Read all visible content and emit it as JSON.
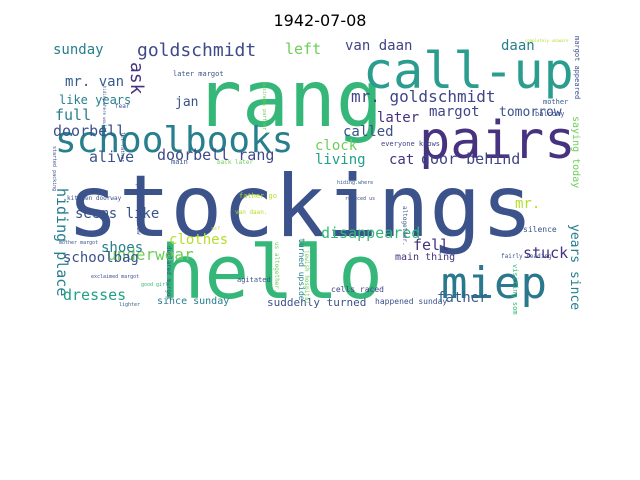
{
  "title": "1942-07-08",
  "colors": {
    "dark_purple": "#46327e",
    "deep_blue": "#365c8d",
    "blue": "#3b528b",
    "teal": "#277f8e",
    "teal_green": "#1fa187",
    "green": "#35b779",
    "light_green": "#6ece58",
    "lime": "#b5de2b",
    "yellow": "#d2e21b"
  },
  "words": [
    {
      "text": "stockings",
      "color": "#3b528b"
    },
    {
      "text": "rang",
      "color": "#35b779"
    },
    {
      "text": "hello",
      "color": "#35b779"
    },
    {
      "text": "call-up",
      "color": "#2a9d8f"
    },
    {
      "text": "pairs",
      "color": "#46327e"
    },
    {
      "text": "schoolbooks",
      "color": "#277f8e"
    },
    {
      "text": "miep",
      "color": "#2a788e"
    },
    {
      "text": "goldschmidt",
      "color": "#3e4a89"
    },
    {
      "text": "mr. goldschmidt",
      "color": "#414487"
    },
    {
      "text": "doorbell rang",
      "color": "#3e4a89"
    },
    {
      "text": "door behind",
      "color": "#414487"
    },
    {
      "text": "ask",
      "color": "#46327e"
    },
    {
      "text": "sunday",
      "color": "#277f8e"
    },
    {
      "text": "left",
      "color": "#6ece58"
    },
    {
      "text": "van daan",
      "color": "#414487"
    },
    {
      "text": "daan",
      "color": "#277f8e"
    },
    {
      "text": "mr. van",
      "color": "#365c8d"
    },
    {
      "text": "like years",
      "color": "#277f8e"
    },
    {
      "text": "doorbell",
      "color": "#3b528b"
    },
    {
      "text": "jan",
      "color": "#3b528b"
    },
    {
      "text": "margot",
      "color": "#414487"
    },
    {
      "text": "tomorrow",
      "color": "#3b528b"
    },
    {
      "text": "full",
      "color": "#277f8e"
    },
    {
      "text": "later",
      "color": "#46327e"
    },
    {
      "text": "called",
      "color": "#3b528b"
    },
    {
      "text": "clock",
      "color": "#6ece58"
    },
    {
      "text": "living",
      "color": "#1fa187"
    },
    {
      "text": "cat",
      "color": "#46327e"
    },
    {
      "text": "alive",
      "color": "#3b528b"
    },
    {
      "text": "hiding place",
      "color": "#277f8e"
    },
    {
      "text": "seems like",
      "color": "#3b528b"
    },
    {
      "text": "clothes",
      "color": "#b5de2b"
    },
    {
      "text": "disappeared",
      "color": "#35b779"
    },
    {
      "text": "mr.",
      "color": "#b5de2b"
    },
    {
      "text": "underwear",
      "color": "#6ece58"
    },
    {
      "text": "shoes",
      "color": "#277f8e"
    },
    {
      "text": "schoolbag",
      "color": "#3b528b"
    },
    {
      "text": "dresses",
      "color": "#1fa187"
    },
    {
      "text": "fell",
      "color": "#46327e"
    },
    {
      "text": "stuck",
      "color": "#46327e"
    },
    {
      "text": "father",
      "color": "#365c8d"
    },
    {
      "text": "years since",
      "color": "#277f8e"
    },
    {
      "text": "main thing",
      "color": "#46327e"
    },
    {
      "text": "suddenly turned",
      "color": "#3b528b"
    },
    {
      "text": "since sunday",
      "color": "#277f8e"
    },
    {
      "text": "saying today",
      "color": "#6ece58"
    },
    {
      "text": "margot appeared",
      "color": "#3b528b"
    },
    {
      "text": "completely unaware",
      "color": "#b5de2b"
    },
    {
      "text": "silence",
      "color": "#3b528b"
    },
    {
      "text": "balcony",
      "color": "#3b528b"
    },
    {
      "text": "mother",
      "color": "#365c8d"
    },
    {
      "text": "everyone knows",
      "color": "#414487"
    },
    {
      "text": "cells raced",
      "color": "#414487"
    },
    {
      "text": "turned upside",
      "color": "#277f8e"
    },
    {
      "text": "happened sunday",
      "color": "#3b528b"
    },
    {
      "text": "visiting someone",
      "color": "#35b779"
    },
    {
      "text": "later margot",
      "color": "#3b528b"
    },
    {
      "text": "kitchen doorway",
      "color": "#3b528b"
    },
    {
      "text": "father go",
      "color": "#b5de2b"
    },
    {
      "text": "us altogether.",
      "color": "#6ece58"
    },
    {
      "text": "altogether.",
      "color": "#3b528b"
    },
    {
      "text": "jewish hospital",
      "color": "#6ece58"
    },
    {
      "text": "fear",
      "color": "#3b528b"
    },
    {
      "text": "main",
      "color": "#3b528b"
    },
    {
      "text": "back later",
      "color": "#6ece58"
    },
    {
      "text": "agitated",
      "color": "#3b528b"
    },
    {
      "text": "hiding.where",
      "color": "#365c8d"
    },
    {
      "text": "reduced us",
      "color": "#3b528b"
    },
    {
      "text": "van daan.",
      "color": "#b5de2b"
    },
    {
      "text": "fairly reading",
      "color": "#3b528b"
    },
    {
      "text": "declared margot",
      "color": "#3b528b"
    },
    {
      "text": "place tomorrow",
      "color": "#3b528b"
    },
    {
      "text": "business partner",
      "color": "#6ece58"
    },
    {
      "text": "let father",
      "color": "#3b528b"
    },
    {
      "text": "hiding.where would",
      "color": "#3b528b"
    },
    {
      "text": "mother margot",
      "color": "#3b528b"
    },
    {
      "text": "exclaimed margot",
      "color": "#3b528b"
    },
    {
      "text": "lighter",
      "color": "#365c8d"
    },
    {
      "text": "good girls",
      "color": "#35b779"
    },
    {
      "text": "started packing",
      "color": "#3b528b"
    },
    {
      "text": "ss?",
      "color": "#b5de2b"
    }
  ]
}
